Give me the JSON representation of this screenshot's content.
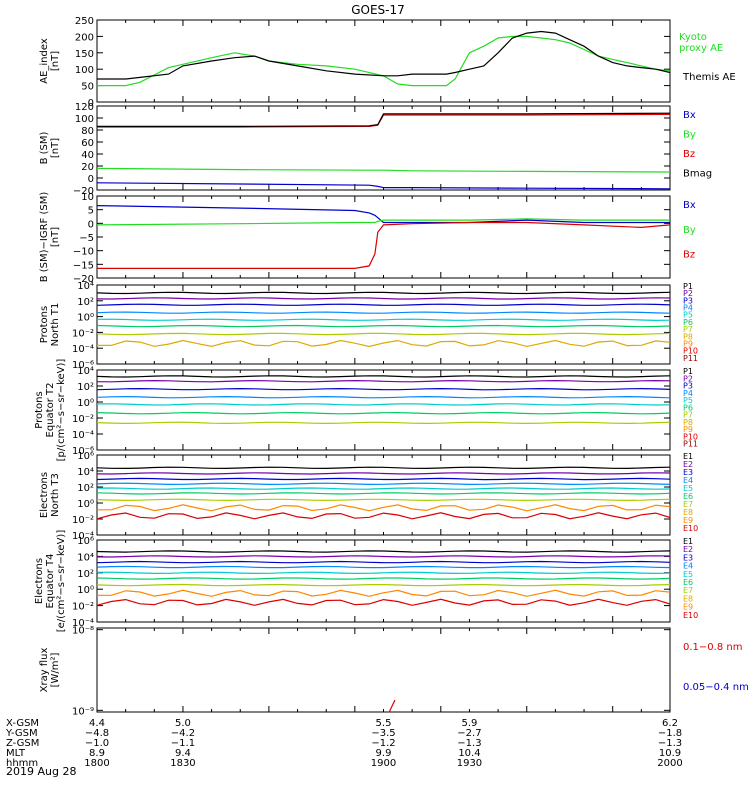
{
  "title": "GOES-17",
  "date": "2019 Aug 28",
  "colors": {
    "black": "#000000",
    "green": "#22dd22",
    "blue": "#0000cc",
    "red": "#dd0000",
    "P1": "#000000",
    "P2": "#7700aa",
    "P3": "#0000cc",
    "P4": "#0088ff",
    "P5": "#00cccc",
    "P6": "#00cc66",
    "P7": "#aacc00",
    "P8": "#ddaa00",
    "P9": "#ff8800",
    "P10": "#dd0000",
    "P11": "#990000"
  },
  "chart_data": [
    {
      "type": "line",
      "id": "ae",
      "ylabel": "AE_index\n[nT]",
      "ylim": [
        0,
        250
      ],
      "yticks": [
        "0",
        "50",
        "100",
        "150",
        "200",
        "250"
      ],
      "xlim": [
        1800,
        2000
      ],
      "x": [
        1800,
        1810,
        1815,
        1825,
        1830,
        1840,
        1848,
        1855,
        1860,
        1870,
        1880,
        1890,
        1900,
        1905,
        1910,
        1915,
        1918,
        1922,
        1925,
        1930,
        1935,
        1940,
        1945,
        1950,
        1955,
        1960,
        1965,
        1970,
        1975,
        1980,
        1985,
        1990,
        1995,
        2000
      ],
      "series": [
        {
          "name": "Kyoto\nproxy AE",
          "color": "green",
          "values": [
            50,
            50,
            60,
            105,
            115,
            135,
            150,
            140,
            125,
            115,
            110,
            100,
            80,
            55,
            50,
            50,
            50,
            50,
            70,
            150,
            170,
            195,
            200,
            200,
            195,
            190,
            180,
            160,
            140,
            130,
            120,
            110,
            100,
            95
          ]
        },
        {
          "name": "Themis AE",
          "color": "black",
          "values": [
            70,
            70,
            75,
            85,
            110,
            125,
            135,
            140,
            125,
            110,
            95,
            85,
            80,
            80,
            85,
            85,
            85,
            85,
            90,
            100,
            110,
            150,
            195,
            210,
            215,
            210,
            190,
            170,
            140,
            120,
            110,
            105,
            100,
            90
          ]
        }
      ]
    },
    {
      "type": "line",
      "id": "bsm",
      "ylabel": "B (SM)\n[nT]",
      "ylim": [
        -20,
        120
      ],
      "yticks": [
        "−20",
        "0",
        "20",
        "40",
        "60",
        "80",
        "100",
        "120"
      ],
      "x": [
        1800,
        1850,
        1895,
        1898,
        1900,
        1910,
        1950,
        2000
      ],
      "series": [
        {
          "name": "Bx",
          "color": "blue",
          "values": [
            -8,
            -10,
            -12,
            -14,
            -16,
            -16,
            -17,
            -18
          ]
        },
        {
          "name": "By",
          "color": "green",
          "values": [
            16,
            14,
            13,
            13,
            13,
            12,
            11,
            10
          ]
        },
        {
          "name": "Bz",
          "color": "red",
          "values": [
            85,
            85,
            86,
            88,
            105,
            105,
            105,
            106
          ]
        },
        {
          "name": "Bmag",
          "color": "black",
          "values": [
            86,
            86,
            87,
            89,
            107,
            107,
            107,
            108
          ]
        }
      ]
    },
    {
      "type": "line",
      "id": "bsmigrf",
      "ylabel": "B (SM)−IGRF (SM)\n[nT]",
      "ylim": [
        -22,
        12
      ],
      "yticks": [
        "−20",
        "−15",
        "−10",
        "−5",
        "0",
        "5",
        "10"
      ],
      "x": [
        1800,
        1850,
        1890,
        1895,
        1897,
        1898,
        1900,
        1910,
        1930,
        1950,
        1970,
        1990,
        2000
      ],
      "series": [
        {
          "name": "Bx",
          "color": "blue",
          "values": [
            8,
            7,
            6,
            5,
            4,
            3,
            1,
            1,
            1,
            2,
            1,
            1,
            1
          ]
        },
        {
          "name": "By",
          "color": "green",
          "values": [
            0,
            0.5,
            1,
            1,
            1,
            1.5,
            2,
            2,
            2,
            2.5,
            2,
            2,
            2
          ]
        },
        {
          "name": "Bz",
          "color": "red",
          "values": [
            -18,
            -18,
            -18,
            -17,
            -12,
            -3,
            0,
            0.5,
            1,
            1,
            0,
            -1,
            0
          ]
        }
      ]
    },
    {
      "type": "line",
      "id": "pn",
      "log": true,
      "ylabel": "Protons\nNorth T1",
      "ylim": [
        -6,
        4
      ],
      "yticks": [
        "10⁻⁶",
        "10⁻⁴",
        "10⁻²",
        "10⁰",
        "10²",
        "10⁴"
      ],
      "labels": [
        "P1",
        "P2",
        "P3",
        "P4",
        "P5",
        "P6",
        "P7",
        "P8",
        "P9",
        "P10",
        "P11"
      ],
      "series": [
        {
          "name": "P1",
          "color": "P1",
          "level": 3.0
        },
        {
          "name": "P2",
          "color": "P2",
          "level": 2.3
        },
        {
          "name": "P3",
          "color": "P3",
          "level": 1.5
        },
        {
          "name": "P4",
          "color": "P4",
          "level": 0.5
        },
        {
          "name": "P5",
          "color": "P5",
          "level": -0.4
        },
        {
          "name": "P6",
          "color": "P6",
          "level": -1.2
        },
        {
          "name": "P7",
          "color": "P7",
          "level": -2.2
        },
        {
          "name": "P8",
          "color": "P8",
          "level": -3.4
        }
      ]
    },
    {
      "type": "line",
      "id": "pe",
      "log": true,
      "ylabel": "Protons\nEquator T2\n[p/(cm²−s−sr−keV)]",
      "ylim": [
        -6,
        4
      ],
      "yticks": [
        "10⁻⁶",
        "10⁻⁴",
        "10⁻²",
        "10⁰",
        "10²",
        "10⁴"
      ],
      "labels": [
        "P1",
        "P2",
        "P3",
        "P4",
        "P5",
        "P6",
        "P7",
        "P8",
        "P9",
        "P10",
        "P11"
      ],
      "series": [
        {
          "name": "P1",
          "color": "P1",
          "level": 3.2
        },
        {
          "name": "P2",
          "color": "P2",
          "level": 2.6
        },
        {
          "name": "P3",
          "color": "P3",
          "level": 1.6
        },
        {
          "name": "P4",
          "color": "P4",
          "level": 0.6
        },
        {
          "name": "P5",
          "color": "P5",
          "level": -0.3
        },
        {
          "name": "P6",
          "color": "P6",
          "level": -1.4
        },
        {
          "name": "P7",
          "color": "P7",
          "level": -2.6
        }
      ]
    },
    {
      "type": "line",
      "id": "en",
      "log": true,
      "ylabel": "Electrons\nNorth T3",
      "ylim": [
        -4,
        6
      ],
      "yticks": [
        "10⁻⁴",
        "10⁻²",
        "10⁰",
        "10²",
        "10⁴",
        "10⁶"
      ],
      "labels": [
        "E1",
        "E2",
        "E3",
        "E4",
        "E5",
        "E6",
        "E7",
        "E8",
        "E9",
        "E10"
      ],
      "series": [
        {
          "name": "E1",
          "color": "P1",
          "level": 4.4
        },
        {
          "name": "E2",
          "color": "P2",
          "level": 3.7
        },
        {
          "name": "E3",
          "color": "P3",
          "level": 3.0
        },
        {
          "name": "E4",
          "color": "P4",
          "level": 2.4
        },
        {
          "name": "E5",
          "color": "P5",
          "level": 1.8
        },
        {
          "name": "E6",
          "color": "P6",
          "level": 1.2
        },
        {
          "name": "E7",
          "color": "P7",
          "level": 0.4
        },
        {
          "name": "E8",
          "color": "P9",
          "level": -0.6
        },
        {
          "name": "E9",
          "color": "P10",
          "level": -1.6
        }
      ]
    },
    {
      "type": "line",
      "id": "ee",
      "log": true,
      "ylabel": "Electrons\nEquator T4\n[e/(cm²−s−sr−keV)]",
      "ylim": [
        -4,
        6
      ],
      "yticks": [
        "10⁻⁴",
        "10⁻²",
        "10⁰",
        "10²",
        "10⁴",
        "10⁶"
      ],
      "labels": [
        "E1",
        "E2",
        "E3",
        "E4",
        "E5",
        "E6",
        "E7",
        "E8",
        "E9",
        "E10"
      ],
      "series": [
        {
          "name": "E1",
          "color": "P1",
          "level": 4.6
        },
        {
          "name": "E2",
          "color": "P2",
          "level": 4.0
        },
        {
          "name": "E3",
          "color": "P3",
          "level": 3.3
        },
        {
          "name": "E4",
          "color": "P4",
          "level": 2.7
        },
        {
          "name": "E5",
          "color": "P5",
          "level": 2.0
        },
        {
          "name": "E6",
          "color": "P6",
          "level": 1.3
        },
        {
          "name": "E7",
          "color": "P7",
          "level": 0.5
        },
        {
          "name": "E8",
          "color": "P9",
          "level": -0.5
        },
        {
          "name": "E9",
          "color": "P10",
          "level": -1.6
        }
      ]
    },
    {
      "type": "line",
      "id": "xray",
      "ylabel": "Xray flux\n[W/m²]",
      "yticks": [
        "10⁻⁹",
        "10⁻⁸"
      ],
      "labels": [
        "0.1−0.8 nm",
        "0.05−0.4 nm"
      ],
      "label_colors": [
        "red",
        "blue"
      ]
    }
  ],
  "xaxis": {
    "rows": [
      "X-GSM",
      "Y-GSM",
      "Z-GSM",
      "MLT",
      "hhmm"
    ],
    "ticks": [
      {
        "x": 1800,
        "vals": [
          "4.4",
          "−4.8",
          "−1.0",
          "8.9",
          "1800"
        ]
      },
      {
        "x": 1830,
        "vals": [
          "5.0",
          "−4.2",
          "−1.1",
          "9.4",
          "1830"
        ]
      },
      {
        "x": 1900,
        "vals": [
          "5.5",
          "−3.5",
          "−1.2",
          "9.9",
          "1900"
        ]
      },
      {
        "x": 1930,
        "vals": [
          "5.9",
          "−2.7",
          "−1.3",
          "10.4",
          "1930"
        ]
      },
      {
        "x": 2000,
        "vals": [
          "6.2",
          "−1.8",
          "−1.3",
          "10.9",
          "2000"
        ]
      }
    ]
  }
}
